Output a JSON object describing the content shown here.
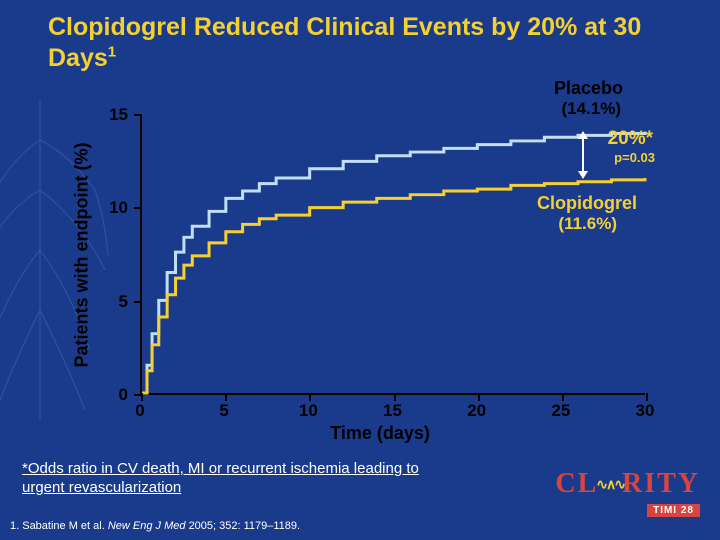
{
  "title_html": "Clopidogrel Reduced Clinical Events by 20% at 30 Days<sup>1</sup>",
  "chart": {
    "type": "line",
    "xlabel": "Time (days)",
    "ylabel": "Patients with endpoint (%)",
    "xlim": [
      0,
      30
    ],
    "ylim": [
      0,
      15
    ],
    "xtick_step": 5,
    "ytick_step": 5,
    "xticks": [
      0,
      5,
      10,
      15,
      20,
      25,
      30
    ],
    "yticks": [
      0,
      5,
      10,
      15
    ],
    "background_color": "#1a3b8c",
    "axis_color": "#000000",
    "tick_fontsize": 17,
    "label_fontsize": 18,
    "series": [
      {
        "name": "Placebo",
        "value_label": "(14.1%)",
        "color": "#c2dff2",
        "stroke_width": 3,
        "x": [
          0,
          0.3,
          0.6,
          1,
          1.5,
          2,
          2.5,
          3,
          4,
          5,
          6,
          7,
          8,
          10,
          12,
          14,
          16,
          18,
          20,
          22,
          24,
          26,
          28,
          30
        ],
        "y": [
          0,
          1.5,
          3.2,
          5.0,
          6.5,
          7.6,
          8.4,
          9.0,
          9.8,
          10.5,
          10.9,
          11.3,
          11.6,
          12.1,
          12.5,
          12.8,
          13.0,
          13.2,
          13.4,
          13.6,
          13.8,
          13.9,
          14.0,
          14.1
        ]
      },
      {
        "name": "Clopidogrel",
        "value_label": "(11.6%)",
        "color": "#f5d030",
        "stroke_width": 3,
        "x": [
          0,
          0.3,
          0.6,
          1,
          1.5,
          2,
          2.5,
          3,
          4,
          5,
          6,
          7,
          8,
          10,
          12,
          14,
          16,
          18,
          20,
          22,
          24,
          26,
          28,
          30
        ],
        "y": [
          0,
          1.2,
          2.6,
          4.1,
          5.3,
          6.2,
          6.9,
          7.4,
          8.1,
          8.7,
          9.1,
          9.4,
          9.6,
          10.0,
          10.3,
          10.5,
          10.7,
          10.9,
          11.0,
          11.2,
          11.3,
          11.4,
          11.5,
          11.6
        ]
      }
    ],
    "annotations": {
      "effect_size": "20%*",
      "p_value": "p=0.03",
      "effect_color": "#f5d030",
      "arrow_color": "#ffffff"
    }
  },
  "footnote": "*Odds ratio in CV death, MI or recurrent ischemia leading to urgent revascularization",
  "citation_plain": "1. Sabatine M et al.",
  "citation_journal": "New Eng J Med",
  "citation_rest": "2005; 352: 1179–1189.",
  "logo": {
    "name": "CLARITY",
    "sub": "TIMI 28",
    "main_color": "#d8443f",
    "wave_color": "#f5d030"
  }
}
